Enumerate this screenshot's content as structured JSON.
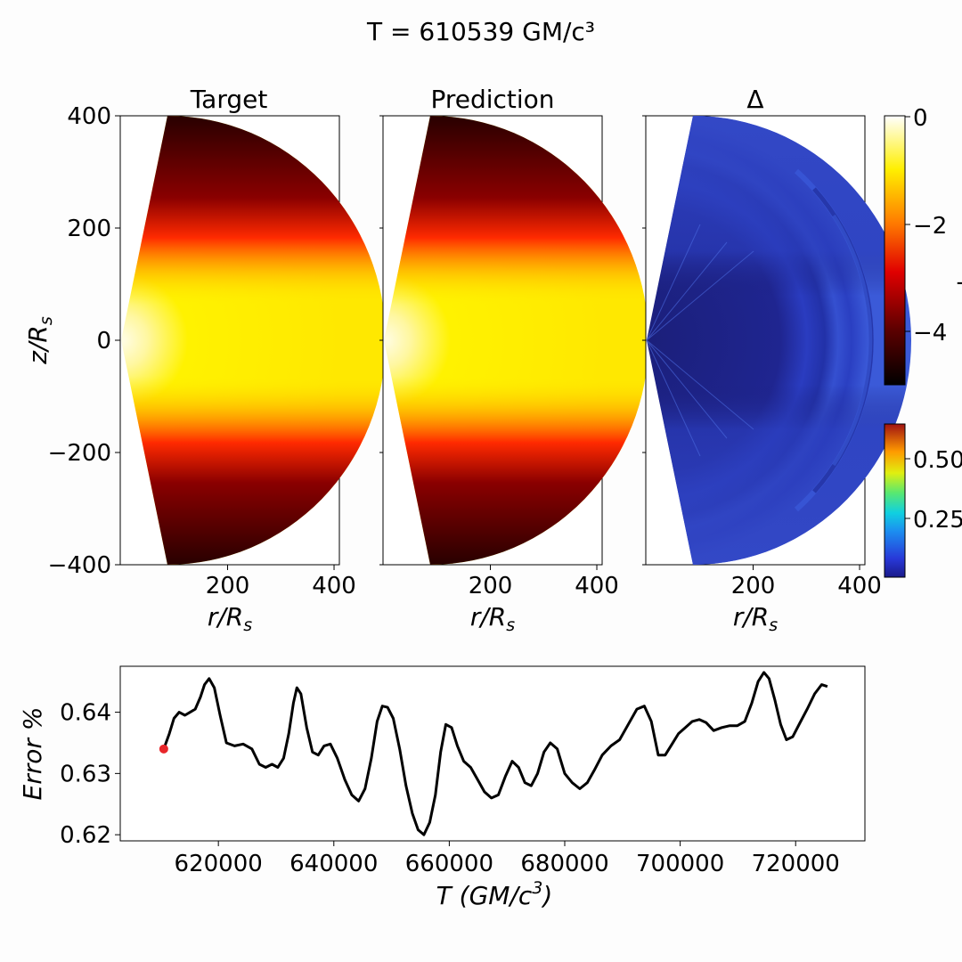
{
  "figure": {
    "suptitle": "T = 610539 GM/c³"
  },
  "panels": [
    {
      "title": "Target"
    },
    {
      "title": "Prediction"
    },
    {
      "title": "Δ"
    }
  ],
  "axes_labels": {
    "z": "z/R",
    "z_sub": "s",
    "r": "r/R",
    "r_sub": "s"
  },
  "colorbars": {
    "main": {
      "ticks": [
        "0",
        "−2",
        "−4"
      ],
      "partial_label": "−",
      "cmap": "hot"
    },
    "delta": {
      "ticks": [
        "0.50",
        "0.25"
      ],
      "cmap": "jet"
    }
  },
  "chart_data": [
    {
      "type": "heatmap",
      "description_panels": [
        "Target",
        "Prediction",
        "Δ"
      ],
      "xlabel": "r/Rs",
      "ylabel": "z/Rs",
      "xticks": [
        200,
        400
      ],
      "yticks": [
        400,
        200,
        0,
        -200,
        -400
      ],
      "xlim": [
        0,
        410
      ],
      "ylim": [
        -410,
        410
      ],
      "main_colorbar_ticks": [
        0,
        -2,
        -4
      ],
      "delta_colorbar_ticks": [
        0.5,
        0.25
      ]
    },
    {
      "type": "line",
      "xlabel": "T (GM/c³)",
      "xlabel_display": "T (GM/c",
      "xlabel_sup": "3",
      "xlabel_end": ")",
      "ylabel": "Error %",
      "xlim": [
        603000,
        732000
      ],
      "ylim": [
        0.619,
        0.6475
      ],
      "xticks": [
        620000,
        640000,
        660000,
        680000,
        700000,
        720000
      ],
      "yticks": [
        0.62,
        0.63,
        0.64
      ],
      "marker": {
        "x": 610539,
        "y": 0.634,
        "color": "#e8262a"
      },
      "series": [
        {
          "color": "#000000",
          "x": [
            610539,
            611500,
            612300,
            613200,
            614200,
            615100,
            616000,
            616900,
            617600,
            618400,
            619300,
            620300,
            621400,
            622800,
            624300,
            625800,
            627100,
            628200,
            629300,
            630300,
            631300,
            632200,
            633000,
            633600,
            634300,
            635300,
            636300,
            637300,
            638300,
            639400,
            640600,
            641900,
            643100,
            644300,
            645400,
            646500,
            647500,
            648400,
            649300,
            650300,
            651400,
            652500,
            653600,
            654600,
            655600,
            656600,
            657600,
            658500,
            659400,
            660400,
            661400,
            662500,
            663700,
            664900,
            666100,
            667300,
            668500,
            669700,
            670900,
            672000,
            673100,
            674200,
            675300,
            676400,
            677500,
            678700,
            680000,
            681300,
            682600,
            683900,
            685100,
            686500,
            688000,
            689500,
            691000,
            692500,
            693800,
            695000,
            696200,
            697400,
            698600,
            699700,
            700900,
            702100,
            703300,
            704500,
            705800,
            707200,
            708600,
            709900,
            711200,
            712400,
            713500,
            714500,
            715400,
            716400,
            717400,
            718400,
            719500,
            720700,
            722000,
            723300,
            724500,
            725500
          ],
          "y": [
            0.634,
            0.6365,
            0.639,
            0.64,
            0.6395,
            0.64,
            0.6405,
            0.6425,
            0.6445,
            0.6455,
            0.644,
            0.6395,
            0.635,
            0.6345,
            0.6348,
            0.634,
            0.6315,
            0.631,
            0.6315,
            0.631,
            0.6325,
            0.6365,
            0.6415,
            0.644,
            0.643,
            0.6375,
            0.6335,
            0.633,
            0.6345,
            0.6348,
            0.6325,
            0.629,
            0.6265,
            0.6255,
            0.6275,
            0.6325,
            0.6385,
            0.641,
            0.6408,
            0.639,
            0.634,
            0.628,
            0.6235,
            0.6208,
            0.62,
            0.622,
            0.6265,
            0.6335,
            0.638,
            0.6375,
            0.6345,
            0.632,
            0.631,
            0.629,
            0.627,
            0.626,
            0.6265,
            0.6295,
            0.632,
            0.631,
            0.6285,
            0.628,
            0.63,
            0.6335,
            0.635,
            0.634,
            0.63,
            0.6285,
            0.6275,
            0.6285,
            0.6305,
            0.633,
            0.6345,
            0.6355,
            0.638,
            0.6405,
            0.641,
            0.6385,
            0.633,
            0.633,
            0.6348,
            0.6365,
            0.6375,
            0.6385,
            0.6388,
            0.6383,
            0.637,
            0.6375,
            0.6378,
            0.6378,
            0.6385,
            0.6415,
            0.645,
            0.6465,
            0.6455,
            0.642,
            0.638,
            0.6355,
            0.636,
            0.6382,
            0.6405,
            0.643,
            0.6445,
            0.6442
          ]
        }
      ]
    }
  ]
}
